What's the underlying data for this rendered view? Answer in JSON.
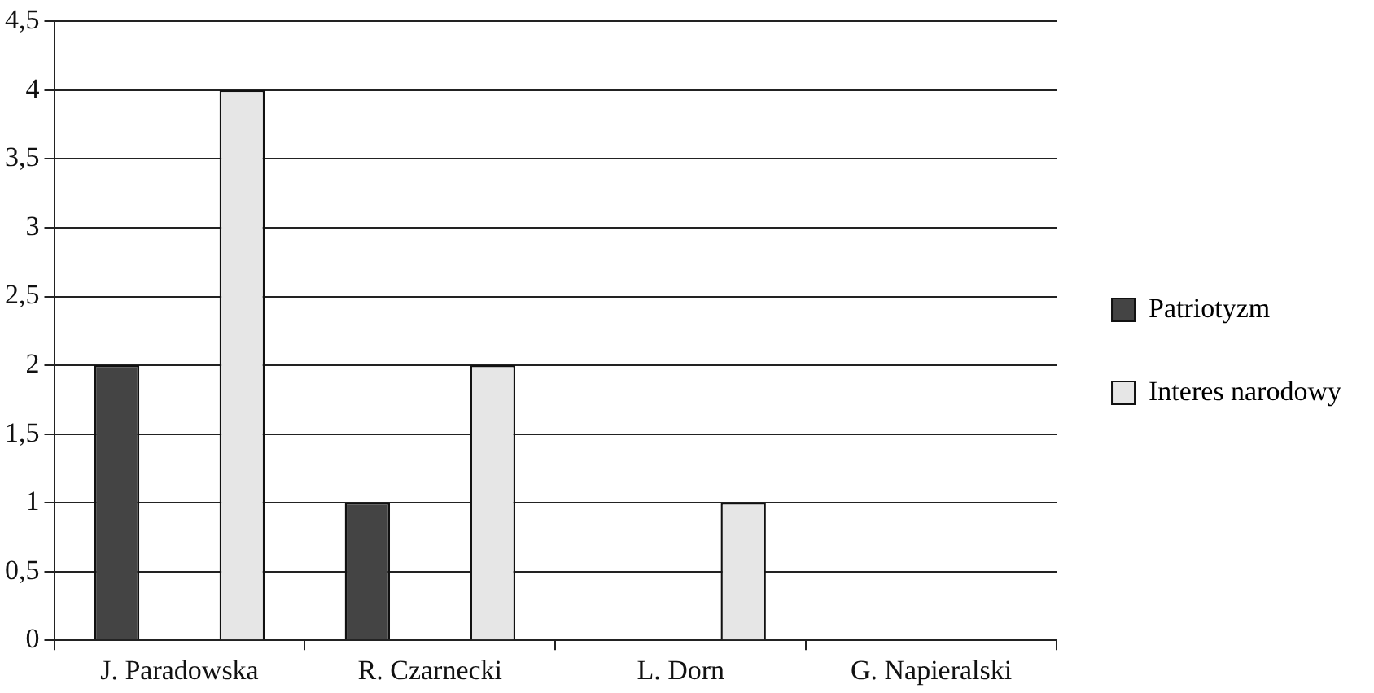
{
  "chart_data": {
    "type": "bar",
    "categories": [
      "J. Paradowska",
      "R. Czarnecki",
      "L. Dorn",
      "G. Napieralski"
    ],
    "series": [
      {
        "name": "Patriotyzm",
        "color": "#444444",
        "values": [
          2,
          1,
          0,
          0
        ]
      },
      {
        "name": "Interes narodowy",
        "color": "#e6e6e6",
        "values": [
          4,
          2,
          1,
          0
        ]
      }
    ],
    "ylim": [
      0,
      4.5
    ],
    "yticks": [
      0,
      {
        "value": 0.5,
        "label": "0,5"
      },
      1,
      {
        "value": 1.5,
        "label": "1,5"
      },
      2,
      {
        "value": 2.5,
        "label": "2,5"
      },
      3,
      {
        "value": 3.5,
        "label": "3,5"
      },
      4,
      {
        "value": 4.5,
        "label": "4,5"
      }
    ],
    "grid": "y",
    "legend": "right"
  }
}
